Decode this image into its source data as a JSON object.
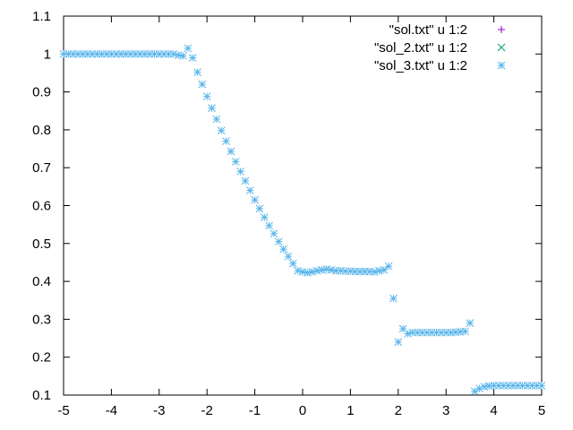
{
  "chart_data": {
    "type": "scatter",
    "title": "",
    "xlabel": "",
    "ylabel": "",
    "xlim": [
      -5,
      5
    ],
    "ylim": [
      0.1,
      1.1
    ],
    "grid": false,
    "legend_position": "top-right",
    "x_ticks": [
      "-5",
      "-4",
      "-3",
      "-2",
      "-1",
      "0",
      "1",
      "2",
      "3",
      "4",
      "5"
    ],
    "y_ticks": [
      "0.1",
      "0.2",
      "0.3",
      "0.4",
      "0.5",
      "0.6",
      "0.7",
      "0.8",
      "0.9",
      "1",
      "1.1"
    ],
    "series": [
      {
        "name": "\"sol.txt\" u 1:2",
        "marker": "plus",
        "color": "#9400d3",
        "x": [],
        "y": []
      },
      {
        "name": "\"sol_2.txt\" u 1:2",
        "marker": "cross",
        "color": "#009e73",
        "x": [],
        "y": []
      },
      {
        "name": "\"sol_3.txt\" u 1:2",
        "marker": "star",
        "color": "#56b4e9",
        "x": [
          -5.0,
          -4.9,
          -4.8,
          -4.7,
          -4.6,
          -4.5,
          -4.4,
          -4.3,
          -4.2,
          -4.1,
          -4.0,
          -3.9,
          -3.8,
          -3.7,
          -3.6,
          -3.5,
          -3.4,
          -3.3,
          -3.2,
          -3.1,
          -3.0,
          -2.9,
          -2.8,
          -2.7,
          -2.6,
          -2.5,
          -2.4,
          -2.3,
          -2.2,
          -2.1,
          -2.0,
          -1.9,
          -1.8,
          -1.7,
          -1.6,
          -1.5,
          -1.4,
          -1.3,
          -1.2,
          -1.1,
          -1.0,
          -0.9,
          -0.8,
          -0.7,
          -0.6,
          -0.5,
          -0.4,
          -0.3,
          -0.2,
          -0.1,
          0.0,
          0.1,
          0.2,
          0.3,
          0.4,
          0.5,
          0.6,
          0.7,
          0.8,
          0.9,
          1.0,
          1.1,
          1.2,
          1.3,
          1.4,
          1.5,
          1.6,
          1.7,
          1.8,
          1.9,
          2.0,
          2.1,
          2.2,
          2.3,
          2.4,
          2.5,
          2.6,
          2.7,
          2.8,
          2.9,
          3.0,
          3.1,
          3.2,
          3.3,
          3.4,
          3.5,
          3.6,
          3.7,
          3.8,
          3.9,
          4.0,
          4.1,
          4.2,
          4.3,
          4.4,
          4.5,
          4.6,
          4.7,
          4.8,
          4.9,
          5.0
        ],
        "y": [
          1.0,
          1.0,
          1.0,
          1.0,
          1.0,
          1.0,
          1.0,
          1.0,
          1.0,
          1.0,
          1.0,
          1.0,
          1.0,
          1.0,
          1.0,
          1.0,
          1.0,
          1.0,
          1.0,
          1.0,
          1.0,
          1.0,
          1.0,
          1.0,
          0.997,
          0.995,
          1.015,
          0.99,
          0.952,
          0.92,
          0.888,
          0.857,
          0.828,
          0.798,
          0.77,
          0.743,
          0.716,
          0.69,
          0.665,
          0.64,
          0.615,
          0.592,
          0.569,
          0.547,
          0.526,
          0.505,
          0.485,
          0.466,
          0.447,
          0.428,
          0.425,
          0.423,
          0.425,
          0.428,
          0.43,
          0.432,
          0.43,
          0.428,
          0.428,
          0.427,
          0.427,
          0.426,
          0.426,
          0.426,
          0.426,
          0.425,
          0.428,
          0.43,
          0.44,
          0.355,
          0.24,
          0.275,
          0.262,
          0.265,
          0.265,
          0.265,
          0.265,
          0.265,
          0.265,
          0.265,
          0.265,
          0.265,
          0.266,
          0.267,
          0.268,
          0.29,
          0.11,
          0.117,
          0.122,
          0.124,
          0.125,
          0.125,
          0.125,
          0.125,
          0.125,
          0.125,
          0.125,
          0.125,
          0.125,
          0.125,
          0.125
        ]
      }
    ]
  }
}
